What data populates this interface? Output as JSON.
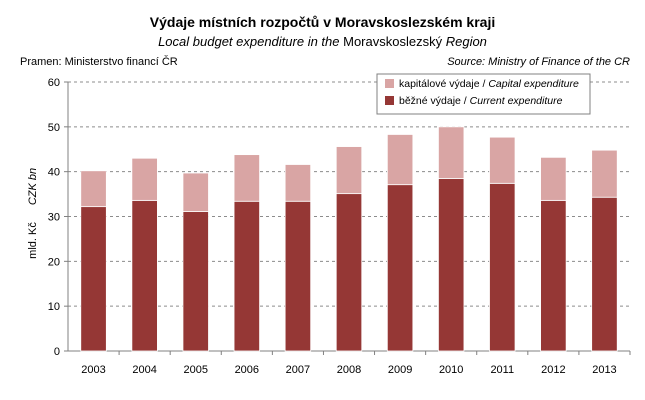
{
  "title": "Výdaje místních rozpočtů v Moravskoslezském kraji",
  "subtitle": {
    "italic_part": "Local budget expenditure in the",
    "regular_part": "Moravskoslezský",
    "italic_end": "Region"
  },
  "source_cz": "Pramen: Ministerstvo financí ČR",
  "source_en": "Source: Ministry of Finance of the CR",
  "chart_data": {
    "type": "bar",
    "stacked": true,
    "categories": [
      "2003",
      "2004",
      "2005",
      "2006",
      "2007",
      "2008",
      "2009",
      "2010",
      "2011",
      "2012",
      "2013"
    ],
    "series": [
      {
        "name": "běžné výdaje / Current expenditure",
        "name_cz": "běžné výdaje",
        "name_en": "Current expenditure",
        "color": "#953735",
        "values": [
          32.2,
          33.6,
          31.1,
          33.4,
          33.4,
          35.1,
          37.1,
          38.5,
          37.4,
          33.6,
          34.3
        ]
      },
      {
        "name": "kapitálové výdaje / Capital expenditure",
        "name_cz": "kapitálové výdaje",
        "name_en": "Capital expenditure",
        "color": "#D9A5A4",
        "values": [
          8.0,
          9.4,
          8.6,
          10.4,
          8.2,
          10.5,
          11.2,
          11.5,
          10.3,
          9.6,
          10.5
        ]
      }
    ],
    "ylabel_cz": "mld. Kč",
    "ylabel_en": "CZK bn",
    "ylim": [
      0,
      60
    ],
    "yticks": [
      0,
      10,
      20,
      30,
      40,
      50,
      60
    ],
    "grid": "horizontal dashed",
    "legend_position": "top-right"
  }
}
